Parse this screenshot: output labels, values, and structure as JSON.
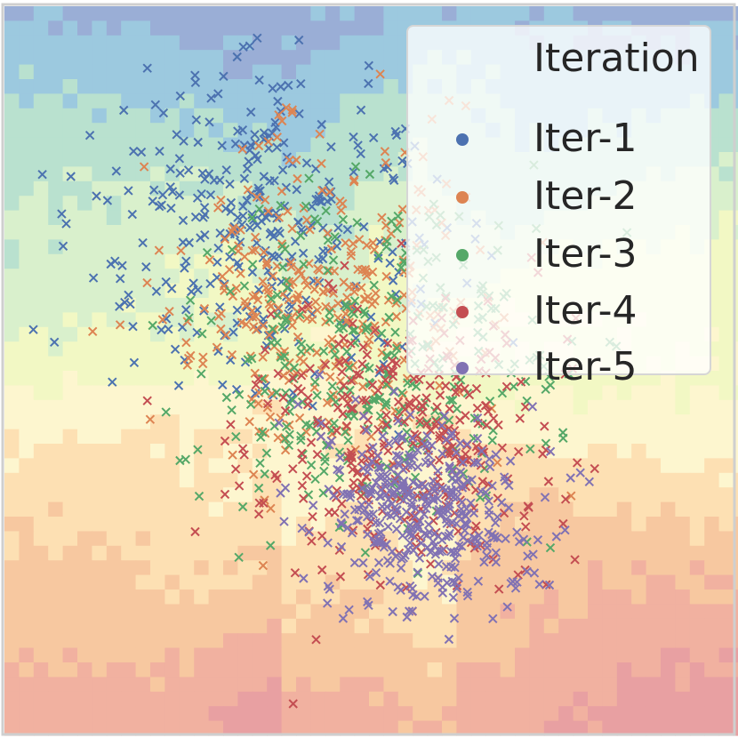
{
  "chart_data": {
    "type": "scatter",
    "title": "",
    "xlabel": "",
    "ylabel": "",
    "xlim": [
      -4,
      4
    ],
    "ylim": [
      -4,
      4
    ],
    "grid": false,
    "background": "decision-region heatmap (blue/green top, yellow middle, orange/red bottom)",
    "marker": "x",
    "legend": {
      "title": "Iteration",
      "placement": "top-right"
    },
    "series": [
      {
        "name": "Iter-1",
        "color": "#4c72b0",
        "center": [
          -1.2,
          1.6
        ],
        "spread": [
          0.95,
          0.95
        ],
        "count": 330
      },
      {
        "name": "Iter-2",
        "color": "#dd8452",
        "center": [
          -0.5,
          0.8
        ],
        "spread": [
          0.9,
          0.9
        ],
        "count": 330
      },
      {
        "name": "Iter-3",
        "color": "#55a868",
        "center": [
          0.1,
          0.0
        ],
        "spread": [
          0.95,
          0.9
        ],
        "count": 330
      },
      {
        "name": "Iter-4",
        "color": "#c44e52",
        "center": [
          0.4,
          -0.8
        ],
        "spread": [
          0.85,
          0.8
        ],
        "count": 330
      },
      {
        "name": "Iter-5",
        "color": "#8172b3",
        "center": [
          0.6,
          -1.6
        ],
        "spread": [
          0.6,
          0.55
        ],
        "count": 380
      }
    ]
  }
}
